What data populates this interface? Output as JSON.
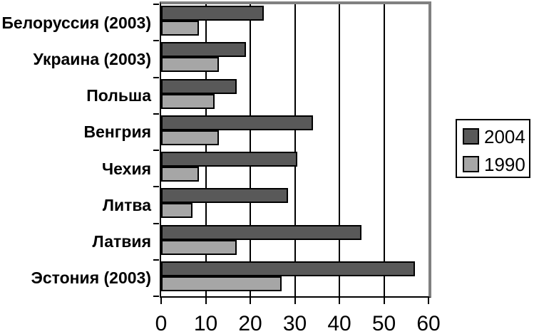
{
  "chart_data": {
    "type": "bar",
    "orientation": "horizontal",
    "title": "",
    "xlabel": "",
    "ylabel": "",
    "categories": [
      "Белоруссия (2003)",
      "Украина (2003)",
      "Польша",
      "Венгрия",
      "Чехия",
      "Литва",
      "Латвия",
      "Эстония (2003)"
    ],
    "series": [
      {
        "name": "2004",
        "color": "#595959",
        "values": [
          23,
          19,
          17,
          34,
          30.5,
          28.5,
          45,
          57
        ]
      },
      {
        "name": "1990",
        "color": "#a6a6a6",
        "values": [
          8.5,
          13,
          12,
          13,
          8.5,
          7,
          17,
          27
        ]
      }
    ],
    "x_axis": {
      "min": 0,
      "max": 60,
      "tick_step": 10,
      "tick_labels": [
        "0",
        "10",
        "20",
        "30",
        "40",
        "50",
        "60"
      ]
    },
    "grid": true,
    "legend_position": "right"
  },
  "colors": {
    "bar_2004": "#595959",
    "bar_1990": "#a6a6a6",
    "bar_border": "#000000",
    "gridline": "#000000",
    "axis": "#000000",
    "plot_shadow_border": "#808080",
    "background": "#ffffff"
  }
}
